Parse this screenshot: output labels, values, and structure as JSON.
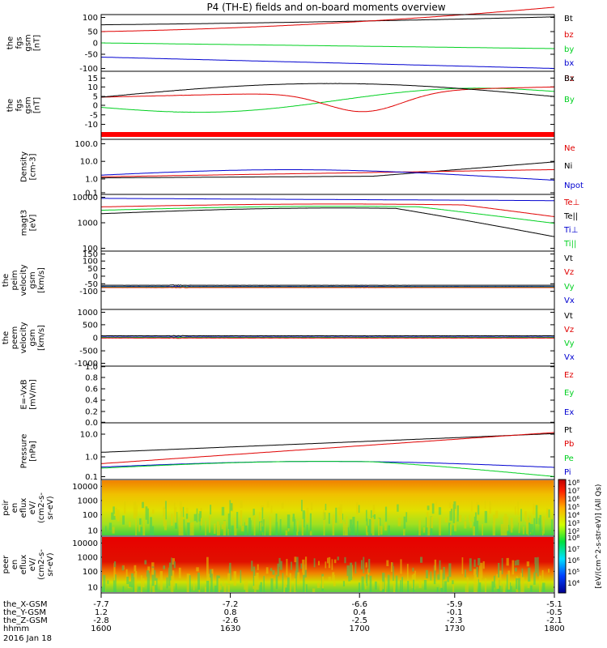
{
  "title": "P4 (TH-E) fields and on-board moments overview",
  "colors": {
    "black": "#000000",
    "red": "#e00000",
    "green": "#00d020",
    "blue": "#0000d0"
  },
  "chart_data": [
    {
      "type": "line",
      "panel": "fgs_gsm",
      "ylabel": [
        "the",
        "fgs",
        "gsm",
        "[nT]"
      ],
      "ylim": [
        -100,
        100
      ],
      "yticks": [
        "100",
        "50",
        "0",
        "-50",
        "-100"
      ],
      "series": [
        {
          "name": "Bt",
          "color": "black"
        },
        {
          "name": "bz",
          "color": "red"
        },
        {
          "name": "by",
          "color": "green"
        },
        {
          "name": "bx",
          "color": "blue"
        }
      ]
    },
    {
      "type": "line",
      "panel": "fgs_gsm_zoom",
      "ylabel": [
        "the",
        "fgs",
        "gsm",
        "[nT]"
      ],
      "ylim": [
        -10,
        10
      ],
      "yticks": [
        "15",
        "10",
        "5",
        "0",
        "-5",
        "-10"
      ],
      "series": [
        {
          "name": "Bz",
          "color": "red"
        },
        {
          "name": "Bx",
          "color": "black"
        },
        {
          "name": "By",
          "color": "green"
        }
      ]
    },
    {
      "type": "line",
      "panel": "density",
      "ylabel": [
        "Density",
        "[cm-3]"
      ],
      "ylim": [
        0.1,
        100
      ],
      "yticks": [
        "100.0",
        "10.0",
        "1.0",
        "0.1"
      ],
      "series": [
        {
          "name": "Ne",
          "color": "red"
        },
        {
          "name": "Ni",
          "color": "black"
        },
        {
          "name": "Npot",
          "color": "blue"
        }
      ]
    },
    {
      "type": "line",
      "panel": "temperature",
      "ylabel": [
        "magt3",
        "[eV]"
      ],
      "ylim": [
        100,
        10000
      ],
      "yticks": [
        "10000",
        "1000",
        "100"
      ],
      "series": [
        {
          "name": "Te⊥",
          "color": "red"
        },
        {
          "name": "Te||",
          "color": "black"
        },
        {
          "name": "Ti⊥",
          "color": "blue"
        },
        {
          "name": "Ti||",
          "color": "green"
        }
      ]
    },
    {
      "type": "line",
      "panel": "peim_velocity",
      "ylabel": [
        "the",
        "peim",
        "velocity",
        "gsm",
        "[km/s]"
      ],
      "ylim": [
        -100,
        150
      ],
      "yticks": [
        "150",
        "100",
        "50",
        "0",
        "-50",
        "-100"
      ],
      "series": [
        {
          "name": "Vt",
          "color": "black"
        },
        {
          "name": "Vz",
          "color": "red"
        },
        {
          "name": "Vy",
          "color": "green"
        },
        {
          "name": "Vx",
          "color": "blue"
        }
      ]
    },
    {
      "type": "line",
      "panel": "peem_velocity",
      "ylabel": [
        "the",
        "peem",
        "velocity",
        "gsm",
        "[km/s]"
      ],
      "ylim": [
        -1000,
        1000
      ],
      "yticks": [
        "1000",
        "500",
        "0",
        "-500",
        "-1000"
      ],
      "series": [
        {
          "name": "Vt",
          "color": "black"
        },
        {
          "name": "Vz",
          "color": "red"
        },
        {
          "name": "Vy",
          "color": "green"
        },
        {
          "name": "Vx",
          "color": "blue"
        }
      ]
    },
    {
      "type": "line",
      "panel": "efield",
      "ylabel": [
        "E=-VxB",
        "[mV/m]"
      ],
      "ylim": [
        0,
        1
      ],
      "yticks": [
        "1.0",
        "0.8",
        "0.6",
        "0.4",
        "0.2",
        "0.0"
      ],
      "series": [
        {
          "name": "Ez",
          "color": "red"
        },
        {
          "name": "Ey",
          "color": "green"
        },
        {
          "name": "Ex",
          "color": "blue"
        }
      ]
    },
    {
      "type": "line",
      "panel": "pressure",
      "ylabel": [
        "Pressure",
        "[nPa]"
      ],
      "ylim": [
        0.1,
        10
      ],
      "yticks": [
        "10.0",
        "1.0",
        "0.1"
      ],
      "series": [
        {
          "name": "Pt",
          "color": "black"
        },
        {
          "name": "Pb",
          "color": "red"
        },
        {
          "name": "Pe",
          "color": "green"
        },
        {
          "name": "Pi",
          "color": "blue"
        }
      ]
    },
    {
      "type": "heatmap",
      "panel": "peir_eflux",
      "ylabel": [
        "the",
        "peir",
        "en",
        "eflux",
        "eV/",
        "(cm2-s-",
        "sr-eV)"
      ],
      "yticks": [
        "10000",
        "1000",
        "100",
        "10"
      ]
    },
    {
      "type": "heatmap",
      "panel": "peer_eflux",
      "ylabel": [
        "the",
        "peer",
        "en",
        "eflux",
        "eV/",
        "(cm2-s-",
        "sr-eV)"
      ],
      "yticks": [
        "10000",
        "1000",
        "100",
        "10"
      ]
    }
  ],
  "colorbar": {
    "label": "[eV/(cm^2-s-str-eV)] (All Qs)",
    "ticks": [
      "10⁸",
      "10⁷",
      "10⁶",
      "10⁵",
      "10⁴",
      "10³",
      "10²"
    ]
  },
  "xaxis": {
    "rows": [
      {
        "label": "the_X-GSM",
        "values": [
          "-7.7",
          "-7.2",
          "-6.6",
          "-5.9",
          "-5.1"
        ]
      },
      {
        "label": "the_Y-GSM",
        "values": [
          "1.2",
          "0.8",
          "0.4",
          "-0.1",
          "-0.5"
        ]
      },
      {
        "label": "the_Z-GSM",
        "values": [
          "-2.8",
          "-2.6",
          "-2.5",
          "-2.3",
          "-2.1"
        ]
      },
      {
        "label": "hhmm",
        "values": [
          "1600",
          "1630",
          "1700",
          "1730",
          "1800"
        ]
      }
    ],
    "date": "2016 Jan 18"
  }
}
